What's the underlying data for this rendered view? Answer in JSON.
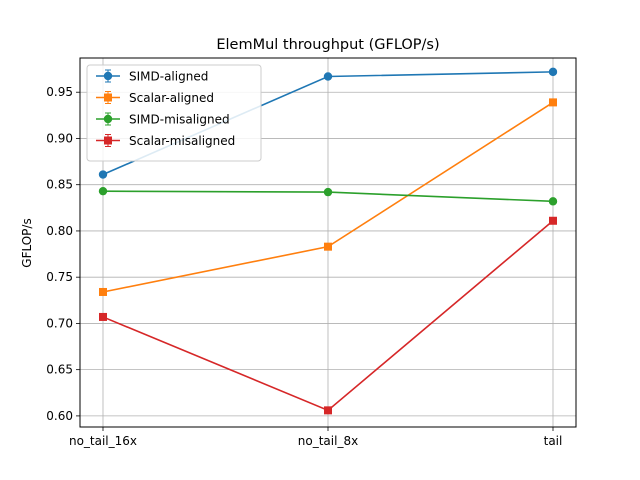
{
  "chart_data": {
    "type": "line",
    "title": "ElemMul throughput (GFLOP/s)",
    "xlabel": "",
    "ylabel": "GFLOP/s",
    "categories": [
      "no_tail_16x",
      "no_tail_8x",
      "tail"
    ],
    "ylim": [
      0.588,
      0.987
    ],
    "yticks": [
      0.6,
      0.65,
      0.7,
      0.75,
      0.8,
      0.85,
      0.9,
      0.95
    ],
    "ytick_labels": [
      "0.60",
      "0.65",
      "0.70",
      "0.75",
      "0.80",
      "0.85",
      "0.90",
      "0.95"
    ],
    "grid": true,
    "legend_position": "top-left",
    "error_bars": true,
    "series": [
      {
        "name": "SIMD-aligned",
        "color": "#1f77b4",
        "marker": "circle",
        "values": [
          0.861,
          0.967,
          0.972
        ]
      },
      {
        "name": "Scalar-aligned",
        "color": "#ff7f0e",
        "marker": "square",
        "values": [
          0.734,
          0.783,
          0.939
        ]
      },
      {
        "name": "SIMD-misaligned",
        "color": "#2ca02c",
        "marker": "circle",
        "values": [
          0.843,
          0.842,
          0.832
        ]
      },
      {
        "name": "Scalar-misaligned",
        "color": "#d62728",
        "marker": "square",
        "values": [
          0.707,
          0.606,
          0.811
        ]
      }
    ]
  }
}
